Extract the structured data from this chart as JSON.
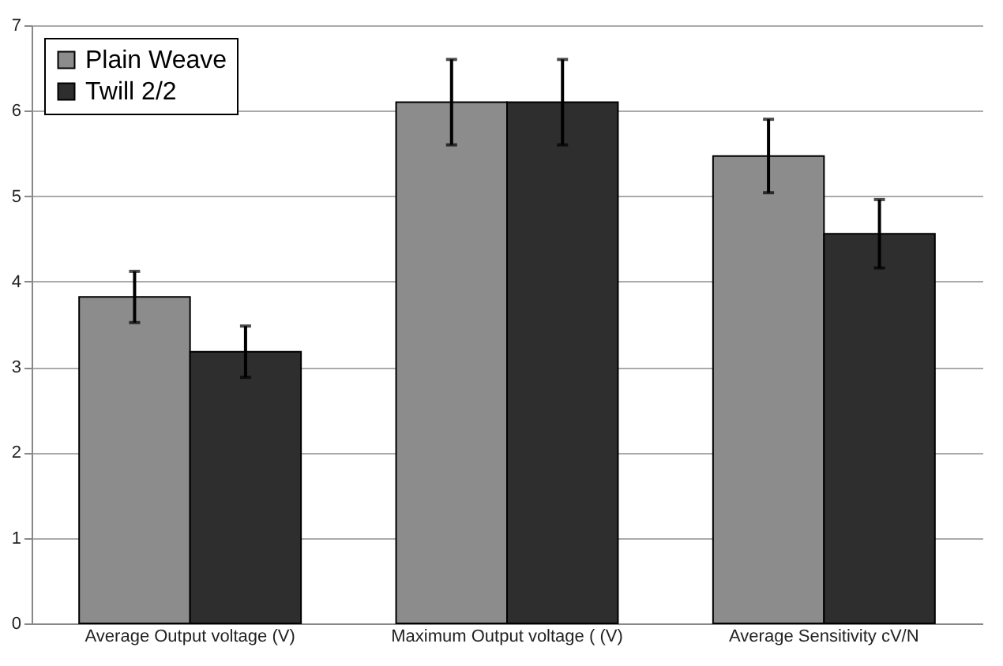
{
  "chart_data": {
    "type": "bar",
    "categories": [
      "Average Output voltage (V)",
      "Maximum Output voltage ( (V)",
      "Average Sensitivity cV/N"
    ],
    "series": [
      {
        "name": "Plain Weave",
        "color": "#8c8c8c",
        "values": [
          3.82,
          6.1,
          5.47
        ],
        "errors": [
          0.3,
          0.5,
          0.43
        ]
      },
      {
        "name": "Twill 2/2",
        "color": "#2e2e2e",
        "values": [
          3.18,
          6.1,
          4.56
        ],
        "errors": [
          0.3,
          0.5,
          0.4
        ]
      }
    ],
    "ylim": [
      0,
      7
    ],
    "yticks": [
      0,
      1,
      2,
      3,
      4,
      5,
      6,
      7
    ],
    "grid": "y",
    "legend": "top left"
  }
}
